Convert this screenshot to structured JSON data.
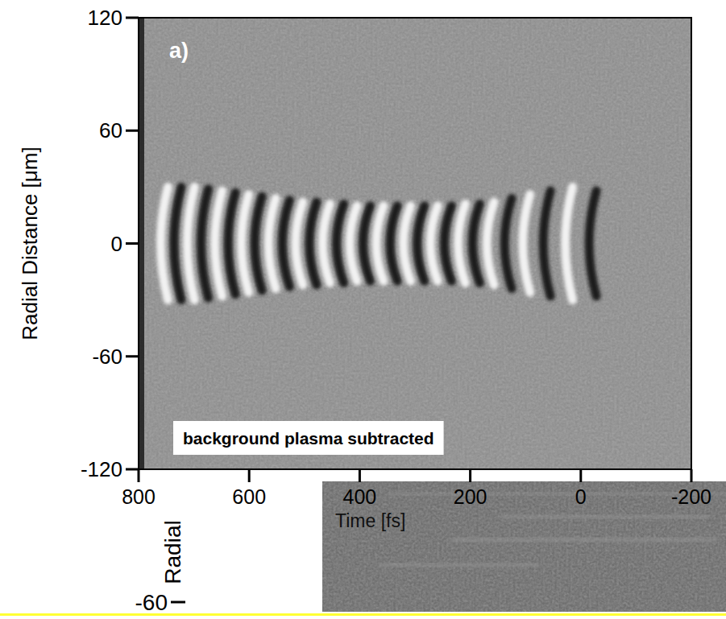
{
  "chart_data": {
    "type": "image",
    "ylabel": "Radial Distance [μm]",
    "xlabel": "Time [fs]",
    "xlim": [
      800,
      -200
    ],
    "ylim": [
      -120,
      120
    ],
    "xticks": [
      800,
      600,
      400,
      200,
      0,
      -200
    ],
    "yticks": [
      120,
      60,
      0,
      -60,
      -120
    ],
    "panel_label": "a)",
    "annotation": "background plasma subtracted",
    "wake": {
      "bright_fringes": {
        "times": [
          760,
          712,
          662,
          614,
          565,
          516,
          467,
          418,
          370,
          321,
          272,
          222,
          170,
          105,
          28
        ],
        "half_widths": [
          30,
          30,
          28,
          26,
          24,
          22,
          21,
          20,
          20,
          20,
          20,
          21,
          22,
          26,
          30
        ]
      },
      "dark_fringes": {
        "times": [
          736,
          687,
          638,
          590,
          540,
          491,
          442,
          394,
          345,
          296,
          247,
          196,
          138,
          68,
          -15
        ],
        "half_widths": [
          30,
          29,
          27,
          25,
          23,
          22,
          21,
          20,
          20,
          20,
          20,
          21,
          24,
          28,
          28
        ]
      }
    },
    "overlay_texts": [
      "Radial",
      "-60"
    ]
  }
}
